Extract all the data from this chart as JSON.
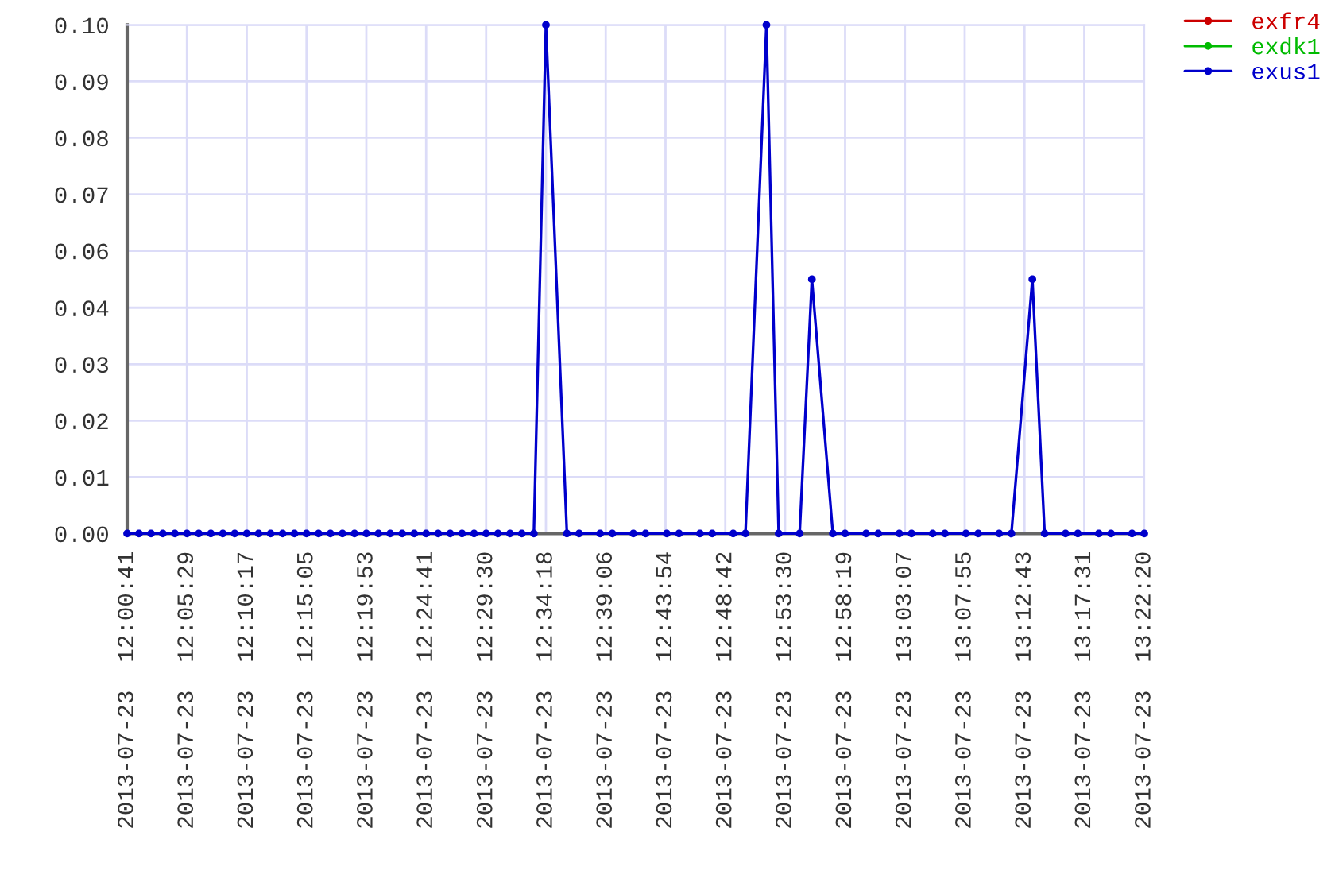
{
  "chart_data": {
    "type": "line",
    "x": [
      "2013-07-23T12:00:41",
      "2013-07-23T12:01:38",
      "2013-07-23T12:02:36",
      "2013-07-23T12:03:33",
      "2013-07-23T12:04:31",
      "2013-07-23T12:05:29",
      "2013-07-23T12:06:26",
      "2013-07-23T12:07:24",
      "2013-07-23T12:08:22",
      "2013-07-23T12:09:19",
      "2013-07-23T12:10:17",
      "2013-07-23T12:11:14",
      "2013-07-23T12:12:12",
      "2013-07-23T12:13:10",
      "2013-07-23T12:14:07",
      "2013-07-23T12:15:05",
      "2013-07-23T12:16:03",
      "2013-07-23T12:17:00",
      "2013-07-23T12:17:58",
      "2013-07-23T12:18:56",
      "2013-07-23T12:19:53",
      "2013-07-23T12:20:51",
      "2013-07-23T12:21:48",
      "2013-07-23T12:22:46",
      "2013-07-23T12:23:44",
      "2013-07-23T12:24:41",
      "2013-07-23T12:25:39",
      "2013-07-23T12:26:37",
      "2013-07-23T12:27:34",
      "2013-07-23T12:28:32",
      "2013-07-23T12:29:30",
      "2013-07-23T12:30:27",
      "2013-07-23T12:31:25",
      "2013-07-23T12:32:22",
      "2013-07-23T12:33:20",
      "2013-07-23T12:34:18",
      "2013-07-23T12:35:59",
      "2013-07-23T12:36:58",
      "2013-07-23T12:38:39",
      "2013-07-23T12:39:38",
      "2013-07-23T12:41:19",
      "2013-07-23T12:42:18",
      "2013-07-23T12:44:00",
      "2013-07-23T12:44:59",
      "2013-07-23T12:46:40",
      "2013-07-23T12:47:39",
      "2013-07-23T12:49:20",
      "2013-07-23T12:50:19",
      "2013-07-23T12:52:00",
      "2013-07-23T12:52:59",
      "2013-07-23T12:54:40",
      "2013-07-23T12:55:39",
      "2013-07-23T12:57:20",
      "2013-07-23T12:58:19",
      "2013-07-23T13:00:00",
      "2013-07-23T13:00:59",
      "2013-07-23T13:02:40",
      "2013-07-23T13:03:39",
      "2013-07-23T13:05:21",
      "2013-07-23T13:06:20",
      "2013-07-23T13:08:01",
      "2013-07-23T13:09:00",
      "2013-07-23T13:10:41",
      "2013-07-23T13:11:40",
      "2013-07-23T13:13:21",
      "2013-07-23T13:14:20",
      "2013-07-23T13:16:01",
      "2013-07-23T13:17:00",
      "2013-07-23T13:18:41",
      "2013-07-23T13:19:40",
      "2013-07-23T13:21:21",
      "2013-07-23T13:22:20"
    ],
    "series": [
      {
        "name": "exfr4",
        "color": "#cc0000",
        "values": [
          null,
          null,
          null,
          null,
          null,
          null,
          null,
          null,
          null,
          null,
          null,
          null,
          null,
          null,
          null,
          null,
          null,
          null,
          null,
          null,
          null,
          null,
          null,
          null,
          null,
          null,
          null,
          null,
          null,
          null,
          null,
          null,
          null,
          null,
          null,
          null,
          null,
          null,
          null,
          null,
          null,
          null,
          null,
          null,
          null,
          null,
          null,
          null,
          null,
          null,
          null,
          null,
          null,
          null,
          null,
          null,
          null,
          null,
          null,
          null,
          null,
          null,
          null,
          null,
          null,
          null,
          null,
          null,
          null,
          null,
          null,
          null
        ]
      },
      {
        "name": "exdk1",
        "color": "#00bb00",
        "values": [
          null,
          null,
          null,
          null,
          null,
          null,
          null,
          null,
          null,
          null,
          null,
          null,
          null,
          null,
          null,
          null,
          null,
          null,
          null,
          null,
          null,
          null,
          null,
          null,
          null,
          null,
          null,
          null,
          null,
          null,
          null,
          null,
          null,
          null,
          null,
          null,
          null,
          null,
          null,
          null,
          null,
          null,
          null,
          null,
          null,
          null,
          null,
          null,
          null,
          null,
          null,
          null,
          null,
          null,
          null,
          null,
          null,
          null,
          null,
          null,
          null,
          null,
          null,
          null,
          null,
          null,
          null,
          null,
          null,
          null,
          null,
          null
        ]
      },
      {
        "name": "exus1",
        "color": "#0000cc",
        "values": [
          0,
          0,
          0,
          0,
          0,
          0,
          0,
          0,
          0,
          0,
          0,
          0,
          0,
          0,
          0,
          0,
          0,
          0,
          0,
          0,
          0,
          0,
          0,
          0,
          0,
          0,
          0,
          0,
          0,
          0,
          0,
          0,
          0,
          0,
          0,
          0.1,
          0,
          0,
          0,
          0,
          0,
          0,
          0,
          0,
          0,
          0,
          0,
          0,
          0.1,
          0,
          0,
          0.05,
          0,
          0,
          0,
          0,
          0,
          0,
          0,
          0,
          0,
          0,
          0,
          0,
          0.05,
          0,
          0,
          0,
          0,
          0,
          0,
          0
        ]
      }
    ],
    "xlim": [
      "2013-07-23T12:00:41",
      "2013-07-23T13:22:20"
    ],
    "xticks": [
      {
        "value": "2013-07-23T12:00:41",
        "label": "2013-07-23  12:00:41"
      },
      {
        "value": "2013-07-23T12:05:29",
        "label": "2013-07-23  12:05:29"
      },
      {
        "value": "2013-07-23T12:10:17",
        "label": "2013-07-23  12:10:17"
      },
      {
        "value": "2013-07-23T12:15:05",
        "label": "2013-07-23  12:15:05"
      },
      {
        "value": "2013-07-23T12:19:53",
        "label": "2013-07-23  12:19:53"
      },
      {
        "value": "2013-07-23T12:24:41",
        "label": "2013-07-23  12:24:41"
      },
      {
        "value": "2013-07-23T12:29:30",
        "label": "2013-07-23  12:29:30"
      },
      {
        "value": "2013-07-23T12:34:18",
        "label": "2013-07-23  12:34:18"
      },
      {
        "value": "2013-07-23T12:39:06",
        "label": "2013-07-23  12:39:06"
      },
      {
        "value": "2013-07-23T12:43:54",
        "label": "2013-07-23  12:43:54"
      },
      {
        "value": "2013-07-23T12:48:42",
        "label": "2013-07-23  12:48:42"
      },
      {
        "value": "2013-07-23T12:53:30",
        "label": "2013-07-23  12:53:30"
      },
      {
        "value": "2013-07-23T12:58:19",
        "label": "2013-07-23  12:58:19"
      },
      {
        "value": "2013-07-23T13:03:07",
        "label": "2013-07-23  13:03:07"
      },
      {
        "value": "2013-07-23T13:07:55",
        "label": "2013-07-23  13:07:55"
      },
      {
        "value": "2013-07-23T13:12:43",
        "label": "2013-07-23  13:12:43"
      },
      {
        "value": "2013-07-23T13:17:31",
        "label": "2013-07-23  13:17:31"
      },
      {
        "value": "2013-07-23T13:22:20",
        "label": "2013-07-23  13:22:20"
      }
    ],
    "ylim": [
      0,
      0.1
    ],
    "yticks": [
      {
        "value": 0,
        "label": "0.00"
      },
      {
        "value": 0.0111,
        "label": "0.01"
      },
      {
        "value": 0.0222,
        "label": "0.02"
      },
      {
        "value": 0.0333,
        "label": "0.03"
      },
      {
        "value": 0.0444,
        "label": "0.04"
      },
      {
        "value": 0.0556,
        "label": "0.06"
      },
      {
        "value": 0.0667,
        "label": "0.07"
      },
      {
        "value": 0.0778,
        "label": "0.08"
      },
      {
        "value": 0.0889,
        "label": "0.09"
      },
      {
        "value": 0.1,
        "label": "0.10"
      }
    ],
    "grid": true,
    "legend": "top right",
    "marker": "circle",
    "line_style": "solid"
  }
}
